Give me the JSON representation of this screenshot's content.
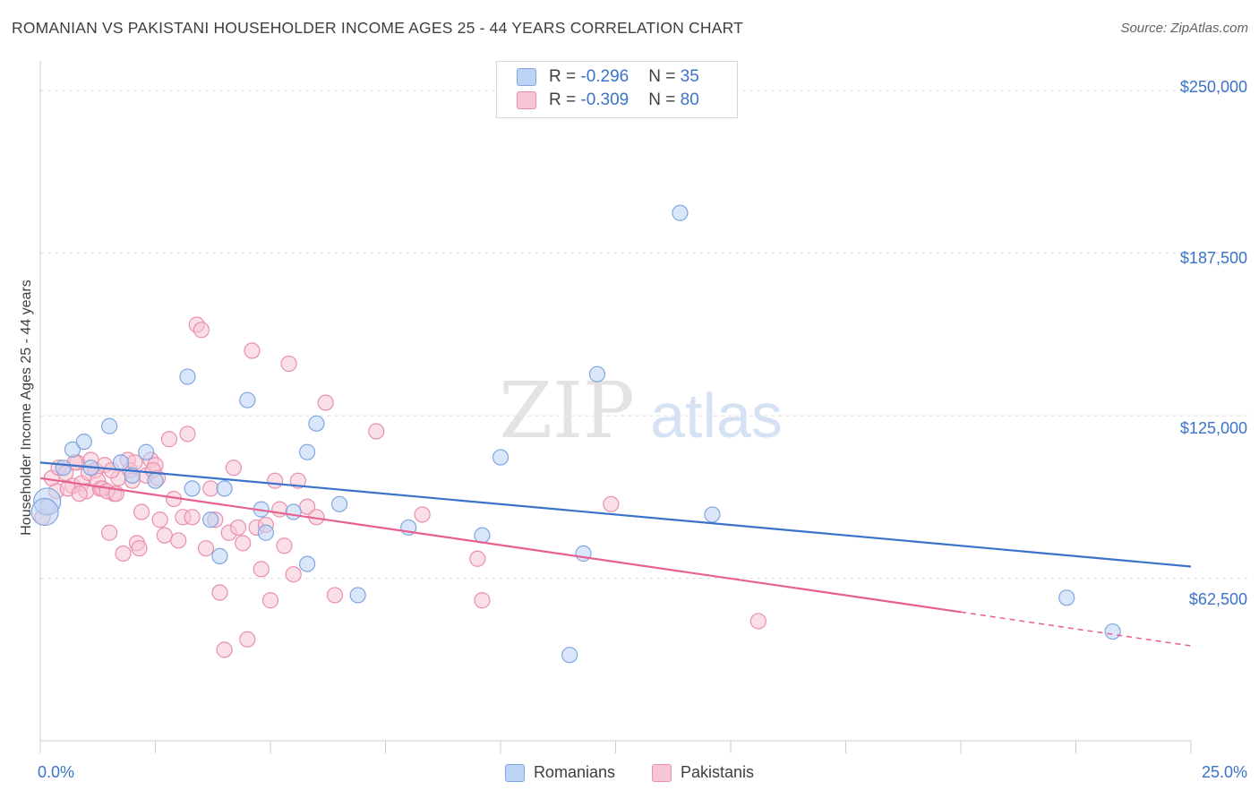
{
  "title": "ROMANIAN VS PAKISTANI HOUSEHOLDER INCOME AGES 25 - 44 YEARS CORRELATION CHART",
  "source": "Source: ZipAtlas.com",
  "legend": {
    "rows": [
      {
        "r_label": "R = ",
        "r_value": "-0.296",
        "n_label": "N = ",
        "n_value": "35"
      },
      {
        "r_label": "R = ",
        "r_value": "-0.309",
        "n_label": "N = ",
        "n_value": "80"
      }
    ]
  },
  "series_labels": {
    "romanians": "Romanians",
    "pakistanis": "Pakistanis"
  },
  "watermark": {
    "zip": "ZIP",
    "atlas": "atlas"
  },
  "axis": {
    "ylabel": "Householder Income Ages 25 - 44 years",
    "xmin_label": "0.0%",
    "xmax_label": "25.0%",
    "yticks": [
      "$250,000",
      "$187,500",
      "$125,000",
      "$62,500"
    ]
  },
  "colors": {
    "blue": "#3b73c9",
    "blue_fill": "#bcd3f5",
    "pink": "#e8608e",
    "pink_fill": "#f8c5d4",
    "grid": "#dddddd"
  },
  "chart_data": {
    "type": "scatter",
    "xlim": [
      0,
      25
    ],
    "ylim": [
      0,
      258000
    ],
    "yticks": [
      62500,
      125000,
      187500,
      250000
    ],
    "grid": true,
    "legend_placement": "top-center",
    "series": [
      {
        "name": "Romanians",
        "r": -0.296,
        "n": 35,
        "trend": [
          [
            0,
            107000
          ],
          [
            25,
            67000
          ]
        ],
        "points": [
          [
            0.15,
            92000
          ],
          [
            0.5,
            105000
          ],
          [
            0.7,
            112000
          ],
          [
            0.95,
            115000
          ],
          [
            1.5,
            121000
          ],
          [
            1.75,
            107000
          ],
          [
            2.0,
            102000
          ],
          [
            2.3,
            111000
          ],
          [
            2.5,
            100000
          ],
          [
            3.2,
            140000
          ],
          [
            3.3,
            97000
          ],
          [
            3.7,
            85000
          ],
          [
            3.9,
            71000
          ],
          [
            4.0,
            97000
          ],
          [
            4.5,
            131000
          ],
          [
            4.8,
            89000
          ],
          [
            4.9,
            80000
          ],
          [
            5.5,
            88000
          ],
          [
            5.8,
            68000
          ],
          [
            5.8,
            111000
          ],
          [
            6.0,
            122000
          ],
          [
            6.5,
            91000
          ],
          [
            6.9,
            56000
          ],
          [
            8.0,
            82000
          ],
          [
            9.6,
            79000
          ],
          [
            10.0,
            109000
          ],
          [
            11.5,
            33000
          ],
          [
            11.8,
            72000
          ],
          [
            12.1,
            141000
          ],
          [
            13.9,
            203000
          ],
          [
            14.6,
            87000
          ],
          [
            22.3,
            55000
          ],
          [
            23.3,
            42000
          ],
          [
            0.1,
            88000
          ],
          [
            1.1,
            105000
          ]
        ]
      },
      {
        "name": "Pakistanis",
        "r": -0.309,
        "n": 80,
        "trend": [
          [
            0,
            101000
          ],
          [
            20,
            49500
          ]
        ],
        "trend_dashed": [
          [
            20,
            49500
          ],
          [
            25,
            36500
          ]
        ],
        "points": [
          [
            0.05,
            86000
          ],
          [
            0.25,
            101000
          ],
          [
            0.35,
            96000
          ],
          [
            0.4,
            105000
          ],
          [
            0.55,
            103000
          ],
          [
            0.7,
            98000
          ],
          [
            0.8,
            107000
          ],
          [
            0.9,
            99000
          ],
          [
            1.0,
            96000
          ],
          [
            1.05,
            103000
          ],
          [
            1.1,
            108000
          ],
          [
            1.2,
            104000
          ],
          [
            1.3,
            97000
          ],
          [
            1.4,
            106000
          ],
          [
            1.5,
            80000
          ],
          [
            1.6,
            95000
          ],
          [
            1.7,
            101000
          ],
          [
            1.8,
            72000
          ],
          [
            1.9,
            108000
          ],
          [
            1.95,
            104000
          ],
          [
            2.0,
            100000
          ],
          [
            2.1,
            76000
          ],
          [
            2.15,
            74000
          ],
          [
            2.2,
            88000
          ],
          [
            2.3,
            102000
          ],
          [
            2.4,
            108000
          ],
          [
            2.5,
            106000
          ],
          [
            2.6,
            85000
          ],
          [
            2.7,
            79000
          ],
          [
            2.8,
            116000
          ],
          [
            2.9,
            93000
          ],
          [
            3.0,
            77000
          ],
          [
            3.1,
            86000
          ],
          [
            3.2,
            118000
          ],
          [
            3.3,
            86000
          ],
          [
            3.4,
            160000
          ],
          [
            3.5,
            158000
          ],
          [
            3.6,
            74000
          ],
          [
            3.7,
            97000
          ],
          [
            3.8,
            85000
          ],
          [
            3.9,
            57000
          ],
          [
            4.0,
            35000
          ],
          [
            4.1,
            80000
          ],
          [
            4.2,
            105000
          ],
          [
            4.3,
            82000
          ],
          [
            4.4,
            76000
          ],
          [
            4.5,
            39000
          ],
          [
            4.6,
            150000
          ],
          [
            4.7,
            82000
          ],
          [
            4.8,
            66000
          ],
          [
            4.9,
            83000
          ],
          [
            5.0,
            54000
          ],
          [
            5.1,
            100000
          ],
          [
            5.2,
            89000
          ],
          [
            5.3,
            75000
          ],
          [
            5.4,
            145000
          ],
          [
            5.5,
            64000
          ],
          [
            5.6,
            100000
          ],
          [
            5.8,
            90000
          ],
          [
            6.0,
            86000
          ],
          [
            6.2,
            130000
          ],
          [
            6.4,
            56000
          ],
          [
            7.3,
            119000
          ],
          [
            8.3,
            87000
          ],
          [
            9.5,
            70000
          ],
          [
            9.6,
            54000
          ],
          [
            12.4,
            91000
          ],
          [
            15.6,
            46000
          ],
          [
            0.15,
            90000
          ],
          [
            0.6,
            97000
          ],
          [
            0.75,
            107000
          ],
          [
            0.85,
            95000
          ],
          [
            1.25,
            100000
          ],
          [
            1.35,
            97000
          ],
          [
            1.45,
            96000
          ],
          [
            1.55,
            104000
          ],
          [
            1.65,
            95000
          ],
          [
            2.05,
            107000
          ],
          [
            2.45,
            104000
          ],
          [
            2.55,
            101000
          ]
        ]
      }
    ]
  }
}
